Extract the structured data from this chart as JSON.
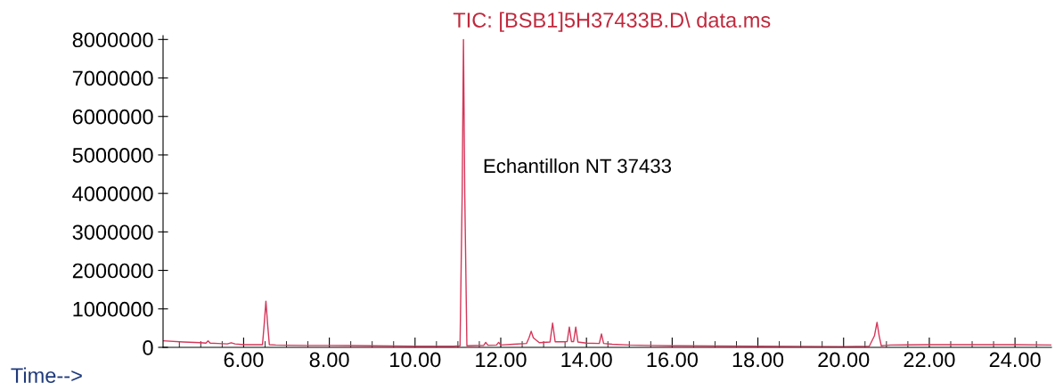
{
  "chart_data": {
    "type": "line",
    "title": "TIC: [BSB1]5H37433B.D\\ data.ms",
    "xlabel": "Time-->",
    "annotations": [
      "Echantillon NT 37433"
    ],
    "x": [
      4.12,
      4.6,
      5.0,
      5.12,
      5.17,
      5.22,
      5.4,
      5.62,
      5.71,
      5.8,
      6.0,
      6.3,
      6.44,
      6.48,
      6.52,
      6.56,
      6.6,
      6.75,
      7.0,
      7.5,
      8.0,
      8.5,
      9.0,
      9.5,
      10.0,
      10.5,
      10.9,
      11.05,
      11.1,
      11.13,
      11.16,
      11.21,
      11.4,
      11.6,
      11.65,
      11.7,
      11.9,
      11.95,
      12.0,
      12.3,
      12.6,
      12.66,
      12.71,
      12.76,
      12.9,
      13.15,
      13.21,
      13.27,
      13.45,
      13.55,
      13.6,
      13.65,
      13.7,
      13.75,
      13.8,
      14.0,
      14.3,
      14.35,
      14.4,
      14.6,
      15.0,
      15.5,
      16.0,
      17.0,
      18.0,
      19.0,
      20.0,
      20.6,
      20.72,
      20.78,
      20.83,
      20.88,
      20.95,
      21.1,
      22.0,
      23.0,
      24.0,
      24.85
    ],
    "series": [
      {
        "color": "#d6365a",
        "values": [
          170000,
          140000,
          120000,
          110000,
          170000,
          110000,
          100000,
          90000,
          120000,
          90000,
          70000,
          70000,
          70000,
          600000,
          1200000,
          600000,
          70000,
          60000,
          55000,
          50000,
          50000,
          45000,
          40000,
          35000,
          30000,
          30000,
          30000,
          40000,
          4000000,
          8000000,
          4000000,
          40000,
          45000,
          50000,
          130000,
          55000,
          60000,
          130000,
          60000,
          80000,
          100000,
          250000,
          420000,
          250000,
          120000,
          140000,
          630000,
          145000,
          145000,
          150000,
          530000,
          150000,
          150000,
          530000,
          140000,
          110000,
          100000,
          350000,
          100000,
          80000,
          60000,
          50000,
          40000,
          35000,
          30000,
          25000,
          20000,
          30000,
          300000,
          650000,
          300000,
          40000,
          50000,
          60000,
          70000,
          70000,
          70000,
          60000
        ]
      }
    ],
    "xlim": [
      4.12,
      24.85
    ],
    "ylim": [
      0,
      8100000
    ],
    "xticks": [
      {
        "value": 4.5,
        "label": null
      },
      {
        "value": 5.0,
        "label": null
      },
      {
        "value": 5.5,
        "label": null
      },
      {
        "value": 6,
        "label": "6.00"
      },
      {
        "value": 6.5,
        "label": null
      },
      {
        "value": 7.0,
        "label": null
      },
      {
        "value": 7.5,
        "label": null
      },
      {
        "value": 8,
        "label": "8.00"
      },
      {
        "value": 8.5,
        "label": null
      },
      {
        "value": 9.0,
        "label": null
      },
      {
        "value": 9.5,
        "label": null
      },
      {
        "value": 10,
        "label": "10.00"
      },
      {
        "value": 10.5,
        "label": null
      },
      {
        "value": 11.0,
        "label": null
      },
      {
        "value": 11.5,
        "label": null
      },
      {
        "value": 12,
        "label": "12.00"
      },
      {
        "value": 12.5,
        "label": null
      },
      {
        "value": 13.0,
        "label": null
      },
      {
        "value": 13.5,
        "label": null
      },
      {
        "value": 14,
        "label": "14.00"
      },
      {
        "value": 14.5,
        "label": null
      },
      {
        "value": 15.0,
        "label": null
      },
      {
        "value": 15.5,
        "label": null
      },
      {
        "value": 16,
        "label": "16.00"
      },
      {
        "value": 16.5,
        "label": null
      },
      {
        "value": 17.0,
        "label": null
      },
      {
        "value": 17.5,
        "label": null
      },
      {
        "value": 18,
        "label": "18.00"
      },
      {
        "value": 18.5,
        "label": null
      },
      {
        "value": 19.0,
        "label": null
      },
      {
        "value": 19.5,
        "label": null
      },
      {
        "value": 20,
        "label": "20.00"
      },
      {
        "value": 20.5,
        "label": null
      },
      {
        "value": 21.0,
        "label": null
      },
      {
        "value": 21.5,
        "label": null
      },
      {
        "value": 22,
        "label": "22.00"
      },
      {
        "value": 22.5,
        "label": null
      },
      {
        "value": 23.0,
        "label": null
      },
      {
        "value": 23.5,
        "label": null
      },
      {
        "value": 24,
        "label": "24.00"
      },
      {
        "value": 24.5,
        "label": null
      }
    ],
    "yticks": [
      0,
      1000000,
      2000000,
      3000000,
      4000000,
      5000000,
      6000000,
      7000000,
      8000000
    ],
    "grid": false,
    "marker": "none",
    "line_style": "solid"
  }
}
